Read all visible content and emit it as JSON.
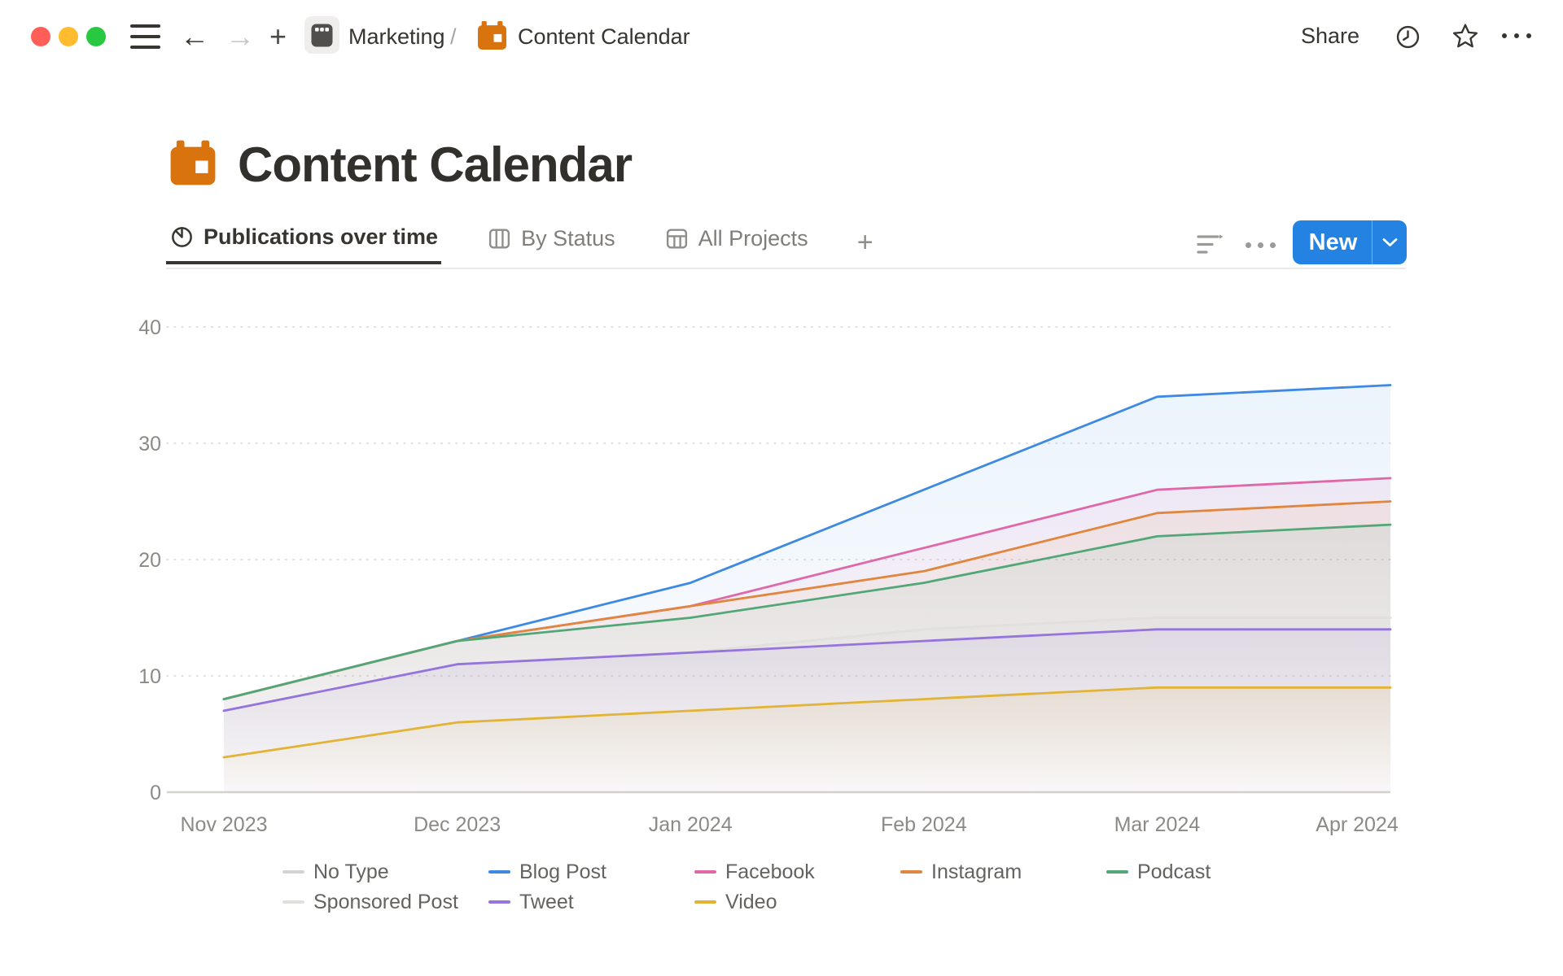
{
  "window": {
    "traffic_lights": [
      "close",
      "minimize",
      "zoom"
    ]
  },
  "topbar": {
    "breadcrumb": {
      "parent": "Marketing",
      "separator": "/",
      "current": "Content Calendar"
    },
    "share_label": "Share"
  },
  "page": {
    "title": "Content Calendar",
    "icon": "orange-calendar"
  },
  "tabs": [
    {
      "label": "Publications over time",
      "icon": "pie-chart-icon",
      "active": true
    },
    {
      "label": "By Status",
      "icon": "board-columns-icon",
      "active": false
    },
    {
      "label": "All Projects",
      "icon": "table-icon",
      "active": false
    }
  ],
  "toolbar": {
    "new_label": "New",
    "accent_color": "#2483e2"
  },
  "chart_data": {
    "type": "area",
    "title": "Publications over time",
    "x": [
      "Nov 2023",
      "Dec 2023",
      "Jan 2024",
      "Feb 2024",
      "Mar 2024",
      "Apr 2024"
    ],
    "series": [
      {
        "name": "No Type",
        "color": "#d5d3d0",
        "fill_opacity": 0.08,
        "values": [
          7,
          11,
          12,
          14,
          15,
          15
        ]
      },
      {
        "name": "Blog Post",
        "color": "#3d89e3",
        "fill_opacity": 0.1,
        "values": [
          8,
          13,
          18,
          26,
          34,
          35
        ]
      },
      {
        "name": "Facebook",
        "color": "#de68a8",
        "fill_opacity": 0.1,
        "values": [
          8,
          13,
          16,
          21,
          26,
          27
        ]
      },
      {
        "name": "Instagram",
        "color": "#e0863e",
        "fill_opacity": 0.1,
        "values": [
          8,
          13,
          16,
          19,
          24,
          25
        ]
      },
      {
        "name": "Podcast",
        "color": "#51a777",
        "fill_opacity": 0.1,
        "values": [
          8,
          13,
          15,
          18,
          22,
          23
        ]
      },
      {
        "name": "Sponsored Post",
        "color": "#e2e0dd",
        "fill_opacity": 0.08,
        "values": [
          7,
          11,
          12,
          14,
          15,
          15
        ]
      },
      {
        "name": "Tweet",
        "color": "#9674dd",
        "fill_opacity": 0.1,
        "values": [
          7,
          11,
          12,
          13,
          14,
          14
        ]
      },
      {
        "name": "Video",
        "color": "#e3b336",
        "fill_opacity": 0.12,
        "values": [
          3,
          6,
          7,
          8,
          9,
          9
        ]
      }
    ],
    "ylim": [
      0,
      40
    ],
    "yticks": [
      0,
      10,
      20,
      30,
      40
    ],
    "grid": "dotted-horizontal",
    "legend_position": "bottom",
    "axis_color": "#d5d2ce",
    "grid_color": "#d9d7d4",
    "tick_label_color": "#8b8a86"
  }
}
